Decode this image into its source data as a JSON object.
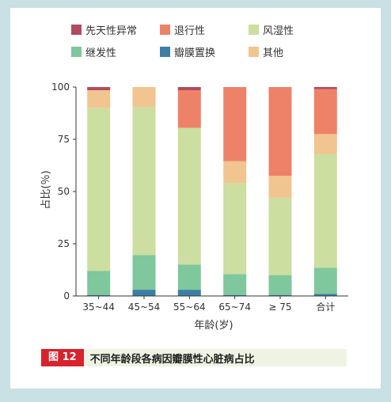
{
  "legend": [
    {
      "label": "先天性异常",
      "color": "#b44a5f"
    },
    {
      "label": "退行性",
      "color": "#ee8268"
    },
    {
      "label": "风湿性",
      "color": "#ccdea0"
    },
    {
      "label": "继发性",
      "color": "#7fc79c"
    },
    {
      "label": "瓣膜置换",
      "color": "#3c7ea6"
    },
    {
      "label": "其他",
      "color": "#f1c590"
    }
  ],
  "caption": {
    "tag": "图 12",
    "text": "不同年龄段各病因瓣膜性心脏病占比"
  },
  "chart_data": {
    "type": "bar",
    "stacked": true,
    "categories": [
      "35~44",
      "45~54",
      "55~64",
      "65~74",
      "≥ 75",
      "合计"
    ],
    "ylabel": "占比(％)",
    "xlabel": "年龄(岁)",
    "ylim": [
      0,
      100
    ],
    "yticks": [
      0,
      25,
      50,
      75,
      100
    ],
    "series": [
      {
        "name": "瓣膜置换",
        "color": "#3c7ea6",
        "values": [
          0.5,
          3,
          3,
          0.5,
          0.5,
          1
        ]
      },
      {
        "name": "继发性",
        "color": "#7fc79c",
        "values": [
          11.5,
          16.5,
          12,
          10,
          9.5,
          12.5
        ]
      },
      {
        "name": "风湿性",
        "color": "#ccdea0",
        "values": [
          78,
          71,
          65.5,
          43.5,
          37,
          54.5
        ]
      },
      {
        "name": "其他",
        "color": "#f1c590",
        "values": [
          8.5,
          9.5,
          0,
          10.5,
          10.5,
          9.5
        ]
      },
      {
        "name": "退行性",
        "color": "#ee8268",
        "values": [
          0,
          0,
          18,
          35.5,
          42.5,
          21.5
        ]
      },
      {
        "name": "先天性异常",
        "color": "#b44a5f",
        "values": [
          1.5,
          0,
          1.5,
          0,
          0,
          1
        ]
      }
    ]
  }
}
